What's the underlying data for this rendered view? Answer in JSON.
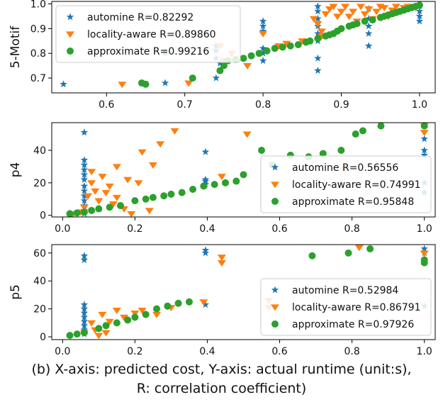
{
  "caption": {
    "line1": "(b) X-axis: predicted cost, Y-axis: actual runtime (unit:s),",
    "line2": "R: correlation coefficient)"
  },
  "colors": {
    "automine": "#1f77b4",
    "locality": "#ff7f0e",
    "approximate": "#2ca02c"
  },
  "chart_data": [
    {
      "type": "scatter",
      "ylabel": "5-Motif",
      "xlim": [
        0.53,
        1.02
      ],
      "ylim": [
        0.64,
        1.01
      ],
      "xticks": [
        0.6,
        0.7,
        0.8,
        0.9,
        1.0
      ],
      "xtick_labels": [
        "0.6",
        "0.7",
        "0.8",
        "0.9",
        "1.0"
      ],
      "yticks": [
        0.7,
        0.8,
        0.9,
        1.0
      ],
      "ytick_labels": [
        "0.7",
        "0.8",
        "0.9",
        "1.0"
      ],
      "legend": "upper-left",
      "series": [
        {
          "name": "automine R=0.82292",
          "marker": "star",
          "points": [
            [
              0.545,
              0.675
            ],
            [
              0.675,
              0.68
            ],
            [
              0.675,
              0.8
            ],
            [
              0.675,
              0.81
            ],
            [
              0.74,
              0.7
            ],
            [
              0.74,
              0.78
            ],
            [
              0.74,
              0.81
            ],
            [
              0.74,
              0.83
            ],
            [
              0.745,
              0.76
            ],
            [
              0.8,
              0.77
            ],
            [
              0.8,
              0.8
            ],
            [
              0.8,
              0.82
            ],
            [
              0.8,
              0.89
            ],
            [
              0.8,
              0.91
            ],
            [
              0.8,
              0.93
            ],
            [
              0.87,
              0.73
            ],
            [
              0.87,
              0.78
            ],
            [
              0.87,
              0.85
            ],
            [
              0.87,
              0.88
            ],
            [
              0.87,
              0.91
            ],
            [
              0.87,
              0.94
            ],
            [
              0.87,
              0.97
            ],
            [
              0.87,
              0.99
            ],
            [
              0.935,
              0.83
            ],
            [
              0.935,
              0.88
            ],
            [
              0.935,
              0.91
            ],
            [
              0.935,
              0.94
            ],
            [
              0.935,
              0.98
            ],
            [
              1.0,
              0.93
            ],
            [
              1.0,
              0.95
            ],
            [
              1.0,
              0.97
            ],
            [
              1.0,
              0.99
            ]
          ]
        },
        {
          "name": "locality-aware R=0.89860",
          "marker": "triangle-down",
          "points": [
            [
              0.62,
              0.675
            ],
            [
              0.705,
              0.68
            ],
            [
              0.745,
              0.83
            ],
            [
              0.75,
              0.77
            ],
            [
              0.76,
              0.8
            ],
            [
              0.78,
              0.75
            ],
            [
              0.8,
              0.88
            ],
            [
              0.82,
              0.83
            ],
            [
              0.83,
              0.84
            ],
            [
              0.85,
              0.85
            ],
            [
              0.865,
              0.94
            ],
            [
              0.87,
              0.92
            ],
            [
              0.875,
              0.87
            ],
            [
              0.875,
              0.89
            ],
            [
              0.88,
              0.96
            ],
            [
              0.885,
              0.98
            ],
            [
              0.89,
              0.99
            ],
            [
              0.895,
              0.95
            ],
            [
              0.9,
              0.97
            ],
            [
              0.905,
              0.99
            ],
            [
              0.91,
              0.95
            ],
            [
              0.915,
              0.97
            ],
            [
              0.92,
              0.93
            ],
            [
              0.925,
              0.99
            ],
            [
              0.93,
              0.96
            ],
            [
              0.935,
              0.98
            ],
            [
              0.94,
              0.94
            ],
            [
              0.945,
              0.97
            ],
            [
              0.95,
              0.99
            ],
            [
              0.955,
              0.985
            ],
            [
              0.96,
              0.95
            ],
            [
              0.965,
              0.975
            ],
            [
              0.97,
              0.99
            ],
            [
              0.975,
              0.97
            ],
            [
              0.98,
              0.985
            ],
            [
              0.985,
              0.99
            ],
            [
              0.99,
              0.99
            ],
            [
              0.995,
              0.985
            ]
          ]
        },
        {
          "name": "approximate R=0.99216",
          "marker": "circle",
          "points": [
            [
              0.645,
              0.68
            ],
            [
              0.65,
              0.675
            ],
            [
              0.71,
              0.7
            ],
            [
              0.745,
              0.73
            ],
            [
              0.75,
              0.75
            ],
            [
              0.755,
              0.77
            ],
            [
              0.765,
              0.775
            ],
            [
              0.775,
              0.78
            ],
            [
              0.785,
              0.79
            ],
            [
              0.795,
              0.8
            ],
            [
              0.805,
              0.81
            ],
            [
              0.815,
              0.82
            ],
            [
              0.825,
              0.825
            ],
            [
              0.835,
              0.83
            ],
            [
              0.845,
              0.835
            ],
            [
              0.855,
              0.845
            ],
            [
              0.86,
              0.85
            ],
            [
              0.87,
              0.86
            ],
            [
              0.88,
              0.87
            ],
            [
              0.885,
              0.875
            ],
            [
              0.89,
              0.88
            ],
            [
              0.895,
              0.89
            ],
            [
              0.9,
              0.9
            ],
            [
              0.91,
              0.91
            ],
            [
              0.915,
              0.915
            ],
            [
              0.92,
              0.92
            ],
            [
              0.93,
              0.93
            ],
            [
              0.94,
              0.935
            ],
            [
              0.95,
              0.945
            ],
            [
              0.955,
              0.95
            ],
            [
              0.96,
              0.955
            ],
            [
              0.965,
              0.96
            ],
            [
              0.97,
              0.965
            ],
            [
              0.975,
              0.97
            ],
            [
              0.98,
              0.975
            ],
            [
              0.985,
              0.98
            ],
            [
              0.99,
              0.985
            ],
            [
              0.995,
              0.99
            ],
            [
              1.0,
              0.995
            ]
          ]
        }
      ]
    },
    {
      "type": "scatter",
      "ylabel": "p4",
      "xlim": [
        -0.03,
        1.03
      ],
      "ylim": [
        -1,
        57
      ],
      "xticks": [
        0.0,
        0.2,
        0.4,
        0.6,
        0.8,
        1.0
      ],
      "xtick_labels": [
        "0.0",
        "0.2",
        "0.4",
        "0.6",
        "0.8",
        "1.0"
      ],
      "yticks": [
        0,
        20,
        40
      ],
      "ytick_labels": [
        "0",
        "20",
        "40"
      ],
      "legend": "lower-right",
      "series": [
        {
          "name": "automine R=0.56556",
          "marker": "star",
          "points": [
            [
              0.06,
              51
            ],
            [
              0.06,
              34
            ],
            [
              0.06,
              31
            ],
            [
              0.06,
              28
            ],
            [
              0.06,
              25
            ],
            [
              0.06,
              22
            ],
            [
              0.06,
              18
            ],
            [
              0.06,
              15
            ],
            [
              0.06,
              12
            ],
            [
              0.06,
              9
            ],
            [
              0.06,
              6
            ],
            [
              0.06,
              3
            ],
            [
              0.06,
              1
            ],
            [
              0.395,
              39
            ],
            [
              0.395,
              22
            ],
            [
              0.395,
              21
            ],
            [
              0.395,
              19
            ],
            [
              1.0,
              40
            ],
            [
              1.0,
              37
            ],
            [
              1.0,
              20
            ],
            [
              1.0,
              14
            ],
            [
              1.0,
              47
            ]
          ]
        },
        {
          "name": "locality-aware R=0.74991",
          "marker": "triangle-down",
          "points": [
            [
              0.03,
              1
            ],
            [
              0.05,
              2
            ],
            [
              0.06,
              5
            ],
            [
              0.07,
              12
            ],
            [
              0.08,
              20
            ],
            [
              0.08,
              27
            ],
            [
              0.09,
              15
            ],
            [
              0.1,
              9
            ],
            [
              0.11,
              24
            ],
            [
              0.12,
              14
            ],
            [
              0.13,
              18
            ],
            [
              0.14,
              7
            ],
            [
              0.15,
              11
            ],
            [
              0.15,
              30
            ],
            [
              0.17,
              4
            ],
            [
              0.18,
              22
            ],
            [
              0.19,
              1
            ],
            [
              0.21,
              20
            ],
            [
              0.22,
              39
            ],
            [
              0.24,
              3
            ],
            [
              0.25,
              31
            ],
            [
              0.27,
              44
            ],
            [
              0.31,
              52
            ],
            [
              0.44,
              24
            ],
            [
              0.51,
              50
            ],
            [
              0.78,
              28
            ],
            [
              1.0,
              55
            ],
            [
              1.0,
              51
            ]
          ]
        },
        {
          "name": "approximate R=0.95848",
          "marker": "circle",
          "points": [
            [
              0.02,
              1
            ],
            [
              0.04,
              1.5
            ],
            [
              0.06,
              2
            ],
            [
              0.08,
              3
            ],
            [
              0.1,
              4
            ],
            [
              0.13,
              5
            ],
            [
              0.16,
              6
            ],
            [
              0.2,
              9
            ],
            [
              0.23,
              10
            ],
            [
              0.25,
              11
            ],
            [
              0.28,
              12
            ],
            [
              0.3,
              13
            ],
            [
              0.33,
              14
            ],
            [
              0.36,
              16
            ],
            [
              0.39,
              18
            ],
            [
              0.42,
              19
            ],
            [
              0.45,
              20
            ],
            [
              0.48,
              21
            ],
            [
              0.5,
              25
            ],
            [
              0.55,
              40
            ],
            [
              0.58,
              31
            ],
            [
              0.63,
              37
            ],
            [
              0.68,
              36
            ],
            [
              0.72,
              38
            ],
            [
              0.77,
              40
            ],
            [
              0.81,
              50
            ],
            [
              0.83,
              52
            ],
            [
              0.88,
              55
            ],
            [
              1.0,
              55
            ]
          ]
        }
      ]
    },
    {
      "type": "scatter",
      "ylabel": "p5",
      "xlim": [
        -0.03,
        1.03
      ],
      "ylim": [
        -2,
        66
      ],
      "xticks": [
        0.0,
        0.2,
        0.4,
        0.6,
        0.8,
        1.0
      ],
      "xtick_labels": [
        "0.0",
        "0.2",
        "0.4",
        "0.6",
        "0.8",
        "1.0"
      ],
      "yticks": [
        0,
        20,
        40,
        60
      ],
      "ytick_labels": [
        "0",
        "20",
        "40",
        "60"
      ],
      "legend": "lower-right",
      "series": [
        {
          "name": "automine R=0.52984",
          "marker": "star",
          "points": [
            [
              0.06,
              58
            ],
            [
              0.06,
              55
            ],
            [
              0.06,
              23
            ],
            [
              0.06,
              20
            ],
            [
              0.06,
              17
            ],
            [
              0.06,
              14
            ],
            [
              0.06,
              11
            ],
            [
              0.06,
              8
            ],
            [
              0.06,
              5
            ],
            [
              0.06,
              2
            ],
            [
              0.395,
              62
            ],
            [
              0.395,
              60
            ],
            [
              0.395,
              23
            ],
            [
              1.0,
              63
            ],
            [
              1.0,
              60
            ],
            [
              1.0,
              22
            ]
          ]
        },
        {
          "name": "locality-aware R=0.86791",
          "marker": "triangle-down",
          "points": [
            [
              0.06,
              3
            ],
            [
              0.08,
              10
            ],
            [
              0.09,
              5
            ],
            [
              0.1,
              1
            ],
            [
              0.11,
              16
            ],
            [
              0.12,
              3
            ],
            [
              0.13,
              11
            ],
            [
              0.15,
              19
            ],
            [
              0.17,
              14
            ],
            [
              0.2,
              17
            ],
            [
              0.22,
              19
            ],
            [
              0.26,
              16
            ],
            [
              0.3,
              21
            ],
            [
              0.39,
              25
            ],
            [
              0.44,
              57
            ],
            [
              0.44,
              53
            ],
            [
              0.57,
              26
            ],
            [
              0.57,
              21
            ],
            [
              0.82,
              64
            ],
            [
              1.0,
              60
            ]
          ]
        },
        {
          "name": "approximate R=0.97926",
          "marker": "circle",
          "points": [
            [
              0.02,
              1
            ],
            [
              0.04,
              2
            ],
            [
              0.06,
              3
            ],
            [
              0.1,
              6
            ],
            [
              0.12,
              8
            ],
            [
              0.15,
              10
            ],
            [
              0.18,
              12
            ],
            [
              0.2,
              14
            ],
            [
              0.23,
              16
            ],
            [
              0.26,
              20
            ],
            [
              0.29,
              22
            ],
            [
              0.32,
              24
            ],
            [
              0.35,
              25
            ],
            [
              0.69,
              58
            ],
            [
              0.79,
              60
            ],
            [
              0.85,
              63
            ],
            [
              1.0,
              55
            ],
            [
              1.0,
              53
            ]
          ]
        }
      ]
    }
  ]
}
